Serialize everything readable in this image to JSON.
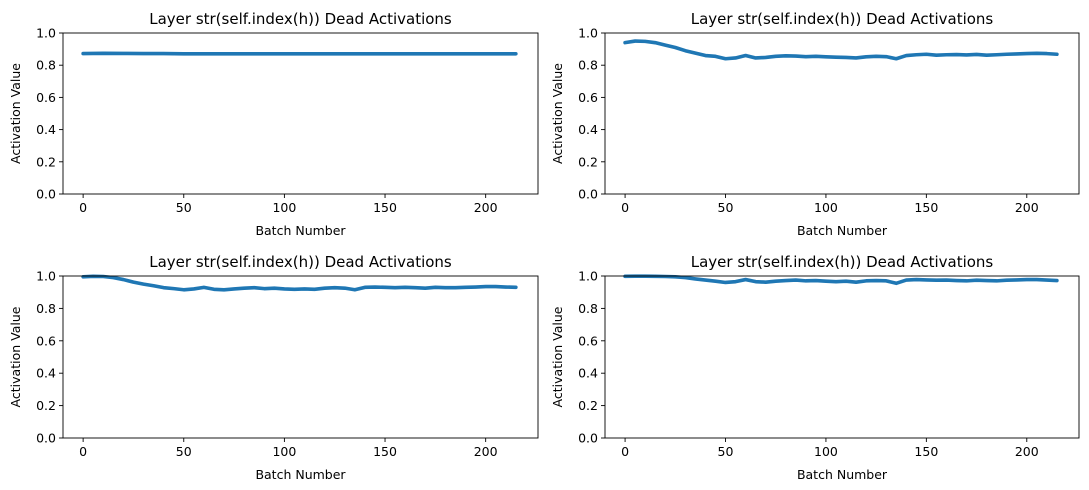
{
  "chart_data": [
    {
      "type": "line",
      "title": "Layer str(self.index(h)) Dead Activations",
      "xlabel": "Batch Number",
      "ylabel": "Activation Value",
      "xlim": [
        -10,
        226
      ],
      "ylim": [
        0,
        1
      ],
      "xticks": [
        0,
        50,
        100,
        150,
        200
      ],
      "yticks": [
        0.0,
        0.2,
        0.4,
        0.6,
        0.8,
        1.0
      ],
      "xtick_labels": [
        "0",
        "50",
        "100",
        "150",
        "200"
      ],
      "ytick_labels": [
        "0.0",
        "0.2",
        "0.4",
        "0.6",
        "0.8",
        "1.0"
      ],
      "grid": false,
      "color": "#1f77b4",
      "series": [
        {
          "x": [
            0,
            10,
            20,
            30,
            40,
            50,
            60,
            70,
            80,
            90,
            100,
            110,
            120,
            130,
            140,
            150,
            160,
            170,
            180,
            190,
            200,
            210,
            215
          ],
          "values": [
            0.872,
            0.874,
            0.873,
            0.872,
            0.872,
            0.871,
            0.871,
            0.871,
            0.871,
            0.871,
            0.871,
            0.871,
            0.871,
            0.871,
            0.871,
            0.871,
            0.871,
            0.871,
            0.871,
            0.871,
            0.871,
            0.871,
            0.871
          ]
        }
      ]
    },
    {
      "type": "line",
      "title": "Layer str(self.index(h)) Dead Activations",
      "xlabel": "Batch Number",
      "ylabel": "Activation Value",
      "xlim": [
        -10,
        226
      ],
      "ylim": [
        0,
        1
      ],
      "xticks": [
        0,
        50,
        100,
        150,
        200
      ],
      "yticks": [
        0.0,
        0.2,
        0.4,
        0.6,
        0.8,
        1.0
      ],
      "xtick_labels": [
        "0",
        "50",
        "100",
        "150",
        "200"
      ],
      "ytick_labels": [
        "0.0",
        "0.2",
        "0.4",
        "0.6",
        "0.8",
        "1.0"
      ],
      "grid": false,
      "color": "#1f77b4",
      "series": [
        {
          "x": [
            0,
            5,
            10,
            15,
            20,
            25,
            30,
            35,
            40,
            45,
            50,
            55,
            60,
            65,
            70,
            75,
            80,
            85,
            90,
            95,
            100,
            105,
            110,
            115,
            120,
            125,
            130,
            135,
            140,
            145,
            150,
            155,
            160,
            165,
            170,
            175,
            180,
            185,
            190,
            195,
            200,
            205,
            210,
            215
          ],
          "values": [
            0.94,
            0.95,
            0.948,
            0.94,
            0.925,
            0.91,
            0.89,
            0.875,
            0.86,
            0.855,
            0.84,
            0.845,
            0.86,
            0.845,
            0.848,
            0.855,
            0.858,
            0.857,
            0.853,
            0.855,
            0.852,
            0.85,
            0.848,
            0.845,
            0.852,
            0.855,
            0.853,
            0.84,
            0.86,
            0.865,
            0.868,
            0.862,
            0.865,
            0.866,
            0.864,
            0.867,
            0.862,
            0.865,
            0.868,
            0.87,
            0.872,
            0.874,
            0.872,
            0.868
          ]
        }
      ]
    },
    {
      "type": "line",
      "title": "Layer str(self.index(h)) Dead Activations",
      "xlabel": "Batch Number",
      "ylabel": "Activation Value",
      "xlim": [
        -10,
        226
      ],
      "ylim": [
        0,
        1
      ],
      "xticks": [
        0,
        50,
        100,
        150,
        200
      ],
      "yticks": [
        0.0,
        0.2,
        0.4,
        0.6,
        0.8,
        1.0
      ],
      "xtick_labels": [
        "0",
        "50",
        "100",
        "150",
        "200"
      ],
      "ytick_labels": [
        "0.0",
        "0.2",
        "0.4",
        "0.6",
        "0.8",
        "1.0"
      ],
      "grid": false,
      "color": "#1f77b4",
      "series": [
        {
          "x": [
            0,
            5,
            10,
            15,
            20,
            25,
            30,
            35,
            40,
            45,
            50,
            55,
            60,
            65,
            70,
            75,
            80,
            85,
            90,
            95,
            100,
            105,
            110,
            115,
            120,
            125,
            130,
            135,
            140,
            145,
            150,
            155,
            160,
            165,
            170,
            175,
            180,
            185,
            190,
            195,
            200,
            205,
            210,
            215
          ],
          "values": [
            0.995,
            0.998,
            0.997,
            0.99,
            0.978,
            0.962,
            0.95,
            0.94,
            0.928,
            0.922,
            0.915,
            0.92,
            0.93,
            0.918,
            0.915,
            0.92,
            0.925,
            0.928,
            0.922,
            0.925,
            0.92,
            0.918,
            0.92,
            0.918,
            0.925,
            0.928,
            0.925,
            0.915,
            0.93,
            0.932,
            0.93,
            0.928,
            0.93,
            0.928,
            0.925,
            0.93,
            0.928,
            0.928,
            0.93,
            0.932,
            0.935,
            0.935,
            0.932,
            0.93
          ]
        }
      ]
    },
    {
      "type": "line",
      "title": "Layer str(self.index(h)) Dead Activations",
      "xlabel": "Batch Number",
      "ylabel": "Activation Value",
      "xlim": [
        -10,
        226
      ],
      "ylim": [
        0,
        1
      ],
      "xticks": [
        0,
        50,
        100,
        150,
        200
      ],
      "yticks": [
        0.0,
        0.2,
        0.4,
        0.6,
        0.8,
        1.0
      ],
      "xtick_labels": [
        "0",
        "50",
        "100",
        "150",
        "200"
      ],
      "ytick_labels": [
        "0.0",
        "0.2",
        "0.4",
        "0.6",
        "0.8",
        "1.0"
      ],
      "grid": false,
      "color": "#1f77b4",
      "series": [
        {
          "x": [
            0,
            5,
            10,
            15,
            20,
            25,
            30,
            35,
            40,
            45,
            50,
            55,
            60,
            65,
            70,
            75,
            80,
            85,
            90,
            95,
            100,
            105,
            110,
            115,
            120,
            125,
            130,
            135,
            140,
            145,
            150,
            155,
            160,
            165,
            170,
            175,
            180,
            185,
            190,
            195,
            200,
            205,
            210,
            215
          ],
          "values": [
            0.998,
            0.999,
            0.999,
            0.998,
            0.997,
            0.995,
            0.99,
            0.982,
            0.975,
            0.968,
            0.96,
            0.965,
            0.978,
            0.965,
            0.962,
            0.968,
            0.972,
            0.975,
            0.97,
            0.972,
            0.968,
            0.965,
            0.968,
            0.962,
            0.97,
            0.972,
            0.97,
            0.955,
            0.975,
            0.978,
            0.976,
            0.974,
            0.975,
            0.972,
            0.97,
            0.974,
            0.972,
            0.97,
            0.974,
            0.976,
            0.978,
            0.978,
            0.975,
            0.972
          ]
        }
      ]
    }
  ]
}
